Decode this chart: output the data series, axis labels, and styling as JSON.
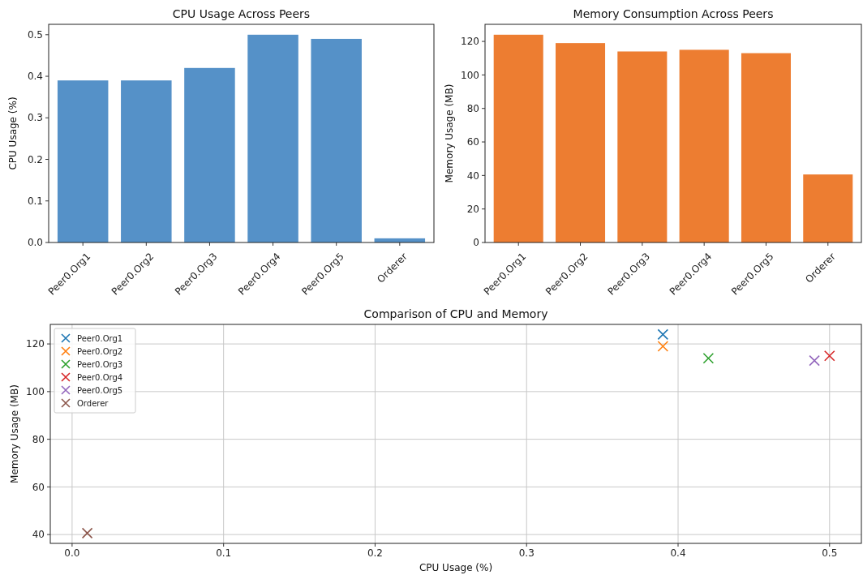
{
  "chart_data": [
    {
      "type": "bar",
      "title": "CPU Usage Across Peers",
      "ylabel": "CPU Usage (%)",
      "categories": [
        "Peer0.Org1",
        "Peer0.Org2",
        "Peer0.Org3",
        "Peer0.Org4",
        "Peer0.Org5",
        "Orderer"
      ],
      "values": [
        0.39,
        0.39,
        0.42,
        0.5,
        0.49,
        0.01
      ],
      "color": "#5591c8",
      "ylim": [
        0,
        0.525
      ],
      "yticks": [
        {
          "value": 0,
          "label": "0.0"
        },
        0.1,
        0.2,
        0.3,
        0.4,
        0.5
      ]
    },
    {
      "type": "bar",
      "title": "Memory Consumption Across Peers",
      "ylabel": "Memory Usage (MB)",
      "categories": [
        "Peer0.Org1",
        "Peer0.Org2",
        "Peer0.Org3",
        "Peer0.Org4",
        "Peer0.Org5",
        "Orderer"
      ],
      "values": [
        124,
        119,
        114,
        115,
        113,
        40.6
      ],
      "color": "#ed7d31",
      "ylim": [
        0,
        130.2
      ],
      "yticks": [
        0,
        20,
        40,
        60,
        80,
        100,
        120
      ]
    },
    {
      "type": "scatter",
      "title": "Comparison of CPU and Memory",
      "xlabel": "CPU Usage (%)",
      "ylabel": "Memory Usage (MB)",
      "xlim": [
        -0.0144,
        0.521
      ],
      "xticks": [
        {
          "value": 0,
          "label": "0.0"
        },
        0.1,
        0.2,
        0.3,
        0.4,
        0.5
      ],
      "ylim": [
        36.3,
        128.2
      ],
      "yticks": [
        40,
        60,
        80,
        100,
        120
      ],
      "grid": true,
      "legend": "top left",
      "marker": "cross",
      "series": [
        {
          "name": "Peer0.Org1",
          "color": "#1f77b4",
          "x": [
            0.39
          ],
          "values": [
            124
          ]
        },
        {
          "name": "Peer0.Org2",
          "color": "#ff7f0e",
          "x": [
            0.39
          ],
          "values": [
            119
          ]
        },
        {
          "name": "Peer0.Org3",
          "color": "#2ca02c",
          "x": [
            0.42
          ],
          "values": [
            114
          ]
        },
        {
          "name": "Peer0.Org4",
          "color": "#d62728",
          "x": [
            0.5
          ],
          "values": [
            115
          ]
        },
        {
          "name": "Peer0.Org5",
          "color": "#9467bd",
          "x": [
            0.49
          ],
          "values": [
            113
          ]
        },
        {
          "name": "Orderer",
          "color": "#8c564b",
          "x": [
            0.01
          ],
          "values": [
            40.6
          ]
        }
      ]
    }
  ]
}
